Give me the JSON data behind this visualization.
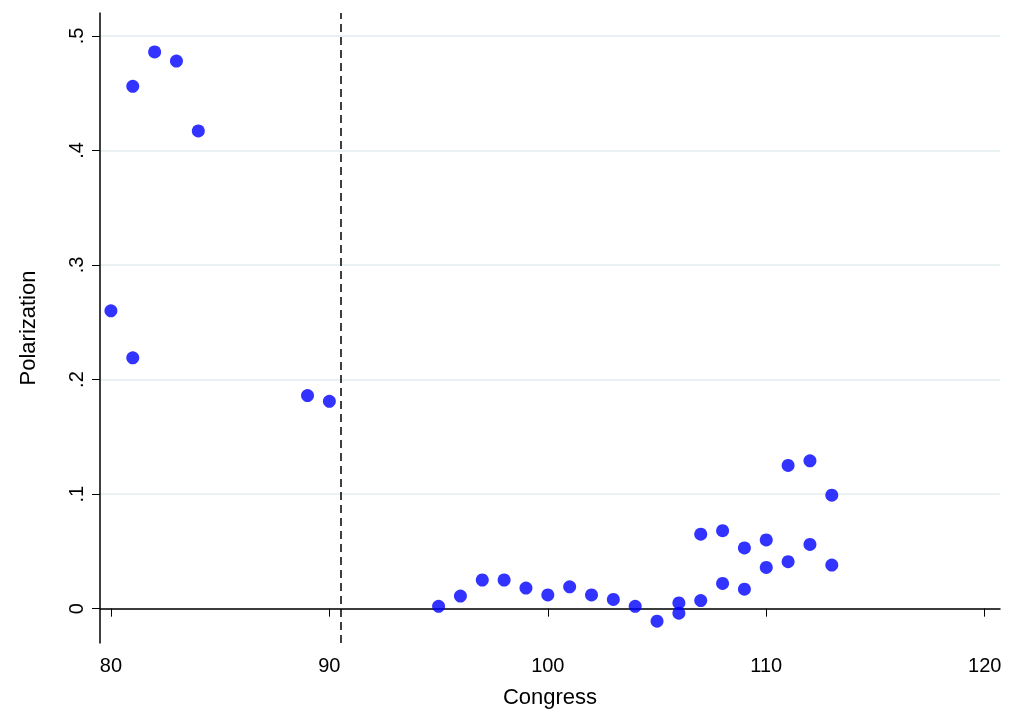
{
  "chart_data": {
    "type": "scatter",
    "xlabel": "Congress",
    "ylabel": "Polarization",
    "x": [
      80,
      81,
      81,
      82,
      83,
      84,
      89,
      90,
      95,
      96,
      97,
      98,
      99,
      100,
      101,
      102,
      103,
      104,
      105,
      106,
      106,
      107,
      107,
      108,
      108,
      109,
      109,
      110,
      110,
      111,
      111,
      112,
      112,
      113,
      113
    ],
    "series": [
      {
        "color": "#0000ff",
        "values": [
          0.26,
          0.456,
          0.219,
          0.486,
          0.478,
          0.417,
          0.186,
          0.181,
          0.002,
          0.011,
          0.025,
          0.025,
          0.018,
          0.012,
          0.019,
          0.012,
          0.008,
          0.002,
          -0.011,
          0.005,
          -0.004,
          0.065,
          0.007,
          0.068,
          0.022,
          0.053,
          0.017,
          0.06,
          0.036,
          0.125,
          0.041,
          0.129,
          0.056,
          0.099,
          0.038
        ]
      }
    ],
    "xlim": [
      79.5,
      120.7
    ],
    "xticks": [
      80,
      90,
      100,
      110,
      120
    ],
    "ylim": [
      -0.03,
      0.52
    ],
    "yticks": [
      {
        "value": 0,
        "label": "0"
      },
      {
        "value": 0.1,
        "label": ".1"
      },
      {
        "value": 0.2,
        "label": ".2"
      },
      {
        "value": 0.3,
        "label": ".3"
      },
      {
        "value": 0.4,
        "label": ".4"
      },
      {
        "value": 0.5,
        "label": ".5"
      }
    ],
    "ref_lines": [
      {
        "axis": "x",
        "value": 90.5,
        "label": null,
        "color": "#000000",
        "line_style": "dashed"
      }
    ],
    "grid": "y",
    "marker": "circle"
  }
}
